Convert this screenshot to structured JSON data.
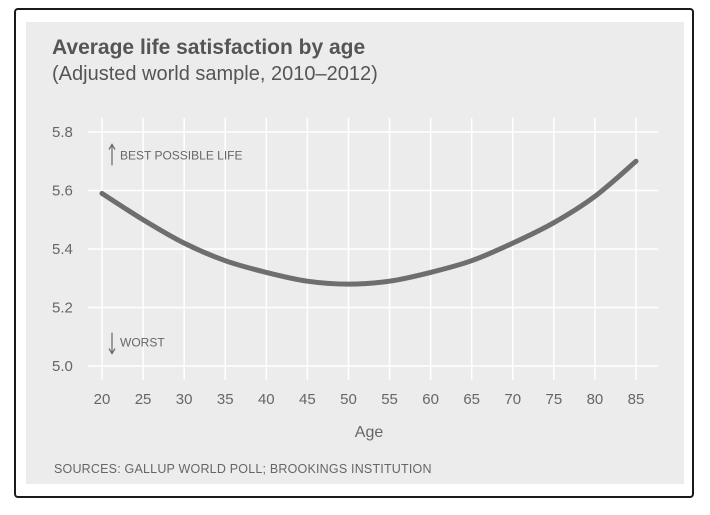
{
  "chart_data": {
    "type": "line",
    "title": "Average life satisfaction by age",
    "subtitle": "(Adjusted world sample, 2010–2012)",
    "xlabel": "Age",
    "ylabel": "",
    "x": [
      20,
      25,
      30,
      35,
      40,
      45,
      50,
      55,
      60,
      65,
      70,
      75,
      80,
      85
    ],
    "series": [
      {
        "values": [
          5.59,
          5.5,
          5.42,
          5.36,
          5.32,
          5.29,
          5.28,
          5.29,
          5.32,
          5.36,
          5.42,
          5.49,
          5.58,
          5.7
        ]
      }
    ],
    "xlim": [
      20,
      85
    ],
    "ylim": [
      5.0,
      5.8
    ],
    "yticks": [
      "5.0",
      "5.2",
      "5.4",
      "5.6",
      "5.8"
    ],
    "xticks": [
      "20",
      "25",
      "30",
      "35",
      "40",
      "45",
      "50",
      "55",
      "60",
      "65",
      "70",
      "75",
      "80",
      "85"
    ],
    "grid": true,
    "annotations": {
      "best": "BEST POSSIBLE LIFE",
      "worst": "WORST"
    },
    "source": "SOURCES: GALLUP WORLD POLL; BROOKINGS INSTITUTION",
    "line_color": "#6e6e6e",
    "grid_color": "#ffffff"
  }
}
